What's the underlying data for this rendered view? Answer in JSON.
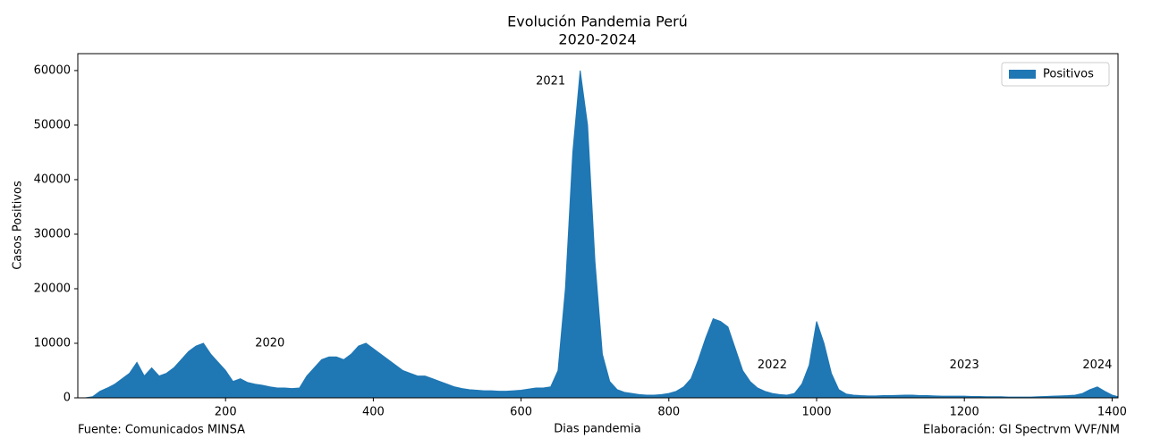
{
  "chart_data": {
    "type": "area",
    "title": "Evolución Pandemia Perú",
    "subtitle": "2020-2024",
    "xlabel": "Dias pandemia",
    "ylabel": "Casos Positivos",
    "source": "Fuente: Comunicados MINSA",
    "credit": "Elaboración: GI Spectrvm VVF/NM",
    "legend": "upper right",
    "xlim": [
      0,
      1408
    ],
    "ylim": [
      0,
      63100
    ],
    "xticks": [
      200,
      400,
      600,
      800,
      1000,
      1200,
      1400
    ],
    "yticks": [
      0,
      10000,
      20000,
      30000,
      40000,
      50000,
      60000
    ],
    "annotations": [
      {
        "text": "2020",
        "x": 240,
        "y": 10000
      },
      {
        "text": "2021",
        "x": 620,
        "y": 58000
      },
      {
        "text": "2022",
        "x": 920,
        "y": 6000
      },
      {
        "text": "2023",
        "x": 1180,
        "y": 6000
      },
      {
        "text": "2024",
        "x": 1360,
        "y": 6000
      }
    ],
    "x": [
      0,
      10,
      20,
      30,
      40,
      50,
      60,
      70,
      80,
      90,
      100,
      110,
      120,
      130,
      140,
      150,
      160,
      170,
      180,
      190,
      200,
      210,
      220,
      230,
      240,
      250,
      260,
      270,
      280,
      290,
      300,
      310,
      320,
      330,
      340,
      350,
      360,
      370,
      380,
      390,
      400,
      410,
      420,
      430,
      440,
      450,
      460,
      470,
      480,
      490,
      500,
      510,
      520,
      530,
      540,
      550,
      560,
      570,
      580,
      590,
      600,
      610,
      620,
      630,
      640,
      650,
      660,
      670,
      680,
      690,
      700,
      710,
      720,
      730,
      740,
      750,
      760,
      770,
      780,
      790,
      800,
      810,
      820,
      830,
      840,
      850,
      860,
      870,
      880,
      890,
      900,
      910,
      920,
      930,
      940,
      950,
      960,
      970,
      980,
      990,
      1000,
      1010,
      1020,
      1030,
      1040,
      1050,
      1060,
      1070,
      1080,
      1090,
      1100,
      1110,
      1120,
      1130,
      1140,
      1150,
      1160,
      1170,
      1180,
      1190,
      1200,
      1210,
      1220,
      1230,
      1240,
      1250,
      1260,
      1270,
      1280,
      1290,
      1300,
      1310,
      1320,
      1330,
      1340,
      1350,
      1360,
      1370,
      1380,
      1390,
      1400,
      1408
    ],
    "series": [
      {
        "name": "Positivos",
        "color": "#1f77b4",
        "values": [
          0,
          0,
          200,
          1200,
          1800,
          2500,
          3500,
          4500,
          6500,
          4000,
          5500,
          4000,
          4500,
          5500,
          7000,
          8500,
          9500,
          10000,
          8000,
          6500,
          5000,
          3000,
          3500,
          2800,
          2500,
          2300,
          2000,
          1800,
          1800,
          1700,
          1800,
          4000,
          5500,
          7000,
          7500,
          7500,
          7000,
          8000,
          9500,
          10000,
          9000,
          8000,
          7000,
          6000,
          5000,
          4500,
          4000,
          4000,
          3500,
          3000,
          2500,
          2000,
          1700,
          1500,
          1400,
          1300,
          1300,
          1200,
          1200,
          1300,
          1400,
          1600,
          1800,
          1800,
          2000,
          5000,
          20000,
          45000,
          60000,
          50000,
          25000,
          8000,
          3000,
          1500,
          1000,
          800,
          600,
          500,
          500,
          600,
          800,
          1200,
          2000,
          3500,
          7000,
          11000,
          14500,
          14000,
          13000,
          9000,
          5000,
          3000,
          1800,
          1200,
          800,
          600,
          500,
          800,
          2500,
          6000,
          14000,
          10000,
          4500,
          1500,
          700,
          500,
          400,
          350,
          350,
          400,
          400,
          450,
          500,
          500,
          400,
          400,
          350,
          300,
          300,
          300,
          300,
          250,
          250,
          200,
          200,
          200,
          150,
          150,
          150,
          150,
          200,
          250,
          300,
          350,
          400,
          500,
          800,
          1500,
          2000,
          1200,
          500,
          200
        ]
      }
    ]
  }
}
